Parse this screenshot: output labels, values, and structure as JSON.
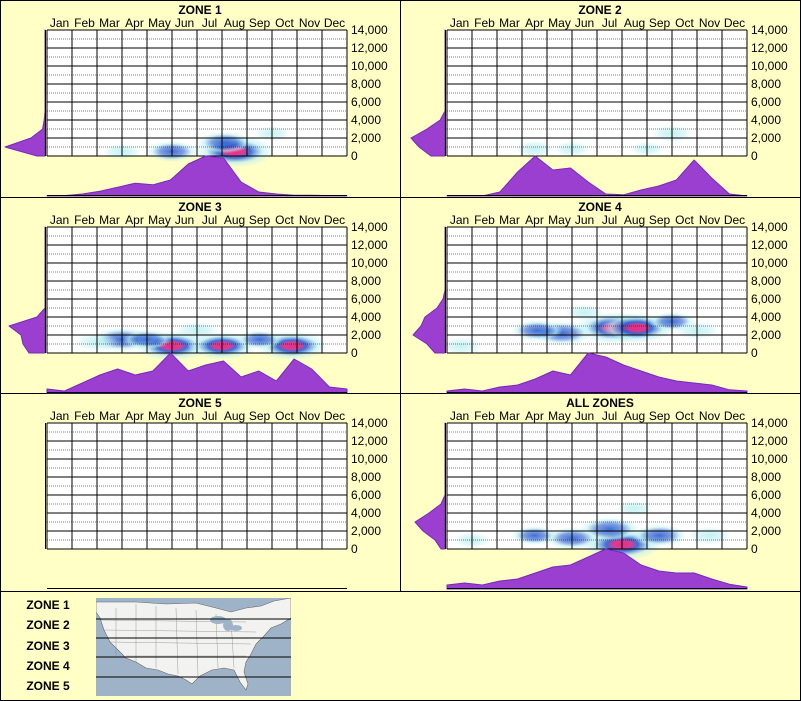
{
  "months": [
    "Jan",
    "Feb",
    "Mar",
    "Apr",
    "May",
    "Jun",
    "Jul",
    "Aug",
    "Sep",
    "Oct",
    "Nov",
    "Dec"
  ],
  "y_ticks": [
    "14,000",
    "12,000",
    "10,000",
    "8,000",
    "6,000",
    "4,000",
    "2,000",
    "0"
  ],
  "legend_zones": [
    "ZONE 1",
    "ZONE 2",
    "ZONE 3",
    "ZONE 4",
    "ZONE 5"
  ],
  "colors": {
    "background": "#ffffc6",
    "density_fill": "#9b3fd0",
    "density_stroke": "#7a28b8",
    "heat_low": "#bff0f2",
    "heat_mid": "#2a5fd0",
    "heat_high": "#e0308a",
    "map_water": "#9fb3c8",
    "map_land": "#f4f4f4"
  },
  "chart_data": [
    {
      "type": "heatmap",
      "title": "ZONE 1",
      "x_categories": [
        "Jan",
        "Feb",
        "Mar",
        "Apr",
        "May",
        "Jun",
        "Jul",
        "Aug",
        "Sep",
        "Oct",
        "Nov",
        "Dec"
      ],
      "ylim": [
        0,
        14000
      ],
      "hotspots": [
        {
          "month": 7.5,
          "elev": 500,
          "intensity": 1.0
        },
        {
          "month": 7.1,
          "elev": 1500,
          "intensity": 0.5
        },
        {
          "month": 5.0,
          "elev": 500,
          "intensity": 0.45
        },
        {
          "month": 3.0,
          "elev": 500,
          "intensity": 0.2
        },
        {
          "month": 9.0,
          "elev": 2500,
          "intensity": 0.15
        }
      ],
      "month_profile": [
        0.0,
        0.01,
        0.05,
        0.12,
        0.22,
        0.32,
        0.28,
        0.4,
        0.8,
        1.0,
        0.95,
        0.35,
        0.1,
        0.05,
        0.02,
        0.02,
        0.01,
        0.0
      ],
      "elev_profile": [
        0.2,
        1.0,
        0.35,
        0.06,
        0.02,
        0.0,
        0.0,
        0.0,
        0.0,
        0.0,
        0.0,
        0.0,
        0.0,
        0.0,
        0.0
      ]
    },
    {
      "type": "heatmap",
      "title": "ZONE 2",
      "x_categories": [
        "Jan",
        "Feb",
        "Mar",
        "Apr",
        "May",
        "Jun",
        "Jul",
        "Aug",
        "Sep",
        "Oct",
        "Nov",
        "Dec"
      ],
      "ylim": [
        0,
        14000
      ],
      "hotspots": [
        {
          "month": 3.5,
          "elev": 800,
          "intensity": 0.2
        },
        {
          "month": 5.0,
          "elev": 800,
          "intensity": 0.15
        },
        {
          "month": 9.0,
          "elev": 2500,
          "intensity": 0.25
        },
        {
          "month": 8.0,
          "elev": 800,
          "intensity": 0.1
        }
      ],
      "month_profile": [
        0.0,
        0.0,
        0.0,
        0.1,
        0.6,
        1.0,
        0.65,
        0.7,
        0.35,
        0.05,
        0.03,
        0.15,
        0.25,
        0.4,
        0.9,
        0.45,
        0.05,
        0.0
      ],
      "elev_profile": [
        0.35,
        0.65,
        0.85,
        0.45,
        0.12,
        0.0,
        0.0,
        0.0,
        0.0,
        0.0,
        0.0,
        0.0,
        0.0,
        0.0,
        0.0
      ]
    },
    {
      "type": "heatmap",
      "title": "ZONE 3",
      "x_categories": [
        "Jan",
        "Feb",
        "Mar",
        "Apr",
        "May",
        "Jun",
        "Jul",
        "Aug",
        "Sep",
        "Oct",
        "Nov",
        "Dec"
      ],
      "ylim": [
        0,
        14000
      ],
      "hotspots": [
        {
          "month": 3.0,
          "elev": 1500,
          "intensity": 0.6
        },
        {
          "month": 5.0,
          "elev": 800,
          "intensity": 0.9
        },
        {
          "month": 7.0,
          "elev": 800,
          "intensity": 0.8
        },
        {
          "month": 9.8,
          "elev": 800,
          "intensity": 0.85
        },
        {
          "month": 6.0,
          "elev": 2500,
          "intensity": 0.3
        },
        {
          "month": 4.0,
          "elev": 1500,
          "intensity": 0.4
        },
        {
          "month": 8.5,
          "elev": 1500,
          "intensity": 0.35
        },
        {
          "month": 2.0,
          "elev": 1200,
          "intensity": 0.3
        }
      ],
      "month_profile": [
        0.1,
        0.05,
        0.25,
        0.45,
        0.6,
        0.45,
        0.55,
        1.0,
        0.55,
        0.7,
        0.8,
        0.4,
        0.55,
        0.3,
        0.85,
        0.6,
        0.15,
        0.1
      ],
      "elev_profile": [
        0.4,
        0.55,
        0.6,
        0.9,
        0.2,
        0.0,
        0.0,
        0.0,
        0.0,
        0.0,
        0.0,
        0.0,
        0.0,
        0.0,
        0.0
      ]
    },
    {
      "type": "heatmap",
      "title": "ZONE 4",
      "x_categories": [
        "Jan",
        "Feb",
        "Mar",
        "Apr",
        "May",
        "Jun",
        "Jul",
        "Aug",
        "Sep",
        "Oct",
        "Nov",
        "Dec"
      ],
      "ylim": [
        0,
        14000
      ],
      "hotspots": [
        {
          "month": 6.7,
          "elev": 2800,
          "intensity": 1.0
        },
        {
          "month": 7.6,
          "elev": 2800,
          "intensity": 0.9
        },
        {
          "month": 4.6,
          "elev": 2200,
          "intensity": 0.6
        },
        {
          "month": 3.6,
          "elev": 2500,
          "intensity": 0.45
        },
        {
          "month": 9.0,
          "elev": 3500,
          "intensity": 0.35
        },
        {
          "month": 10.0,
          "elev": 2500,
          "intensity": 0.3
        },
        {
          "month": 0.6,
          "elev": 800,
          "intensity": 0.25
        },
        {
          "month": 5.5,
          "elev": 4500,
          "intensity": 0.2
        }
      ],
      "month_profile": [
        0.05,
        0.1,
        0.05,
        0.15,
        0.2,
        0.35,
        0.55,
        0.45,
        1.0,
        0.9,
        0.7,
        0.55,
        0.4,
        0.3,
        0.25,
        0.2,
        0.08,
        0.05
      ],
      "elev_profile": [
        0.25,
        0.45,
        0.8,
        0.6,
        0.5,
        0.2,
        0.05,
        0.0,
        0.0,
        0.0,
        0.0,
        0.0,
        0.0,
        0.0,
        0.0
      ]
    },
    {
      "type": "heatmap",
      "title": "ZONE 5",
      "x_categories": [
        "Jan",
        "Feb",
        "Mar",
        "Apr",
        "May",
        "Jun",
        "Jul",
        "Aug",
        "Sep",
        "Oct",
        "Nov",
        "Dec"
      ],
      "ylim": [
        0,
        14000
      ],
      "hotspots": [],
      "month_profile": [],
      "elev_profile": []
    },
    {
      "type": "heatmap",
      "title": "ALL ZONES",
      "x_categories": [
        "Jan",
        "Feb",
        "Mar",
        "Apr",
        "May",
        "Jun",
        "Jul",
        "Aug",
        "Sep",
        "Oct",
        "Nov",
        "Dec"
      ],
      "ylim": [
        0,
        14000
      ],
      "hotspots": [
        {
          "month": 7.0,
          "elev": 500,
          "intensity": 1.0
        },
        {
          "month": 6.5,
          "elev": 2200,
          "intensity": 0.6
        },
        {
          "month": 5.0,
          "elev": 1200,
          "intensity": 0.5
        },
        {
          "month": 8.5,
          "elev": 1500,
          "intensity": 0.5
        },
        {
          "month": 3.5,
          "elev": 1500,
          "intensity": 0.35
        },
        {
          "month": 10.5,
          "elev": 1500,
          "intensity": 0.3
        },
        {
          "month": 1.0,
          "elev": 1000,
          "intensity": 0.15
        },
        {
          "month": 7.5,
          "elev": 4500,
          "intensity": 0.15
        }
      ],
      "month_profile": [
        0.1,
        0.15,
        0.1,
        0.2,
        0.25,
        0.4,
        0.55,
        0.6,
        0.8,
        1.0,
        0.9,
        0.6,
        0.45,
        0.4,
        0.4,
        0.25,
        0.12,
        0.05
      ],
      "elev_profile": [
        0.1,
        0.25,
        0.55,
        0.75,
        0.4,
        0.1,
        0.0,
        0.0,
        0.0,
        0.0,
        0.0,
        0.0,
        0.0,
        0.0,
        0.0
      ]
    }
  ]
}
